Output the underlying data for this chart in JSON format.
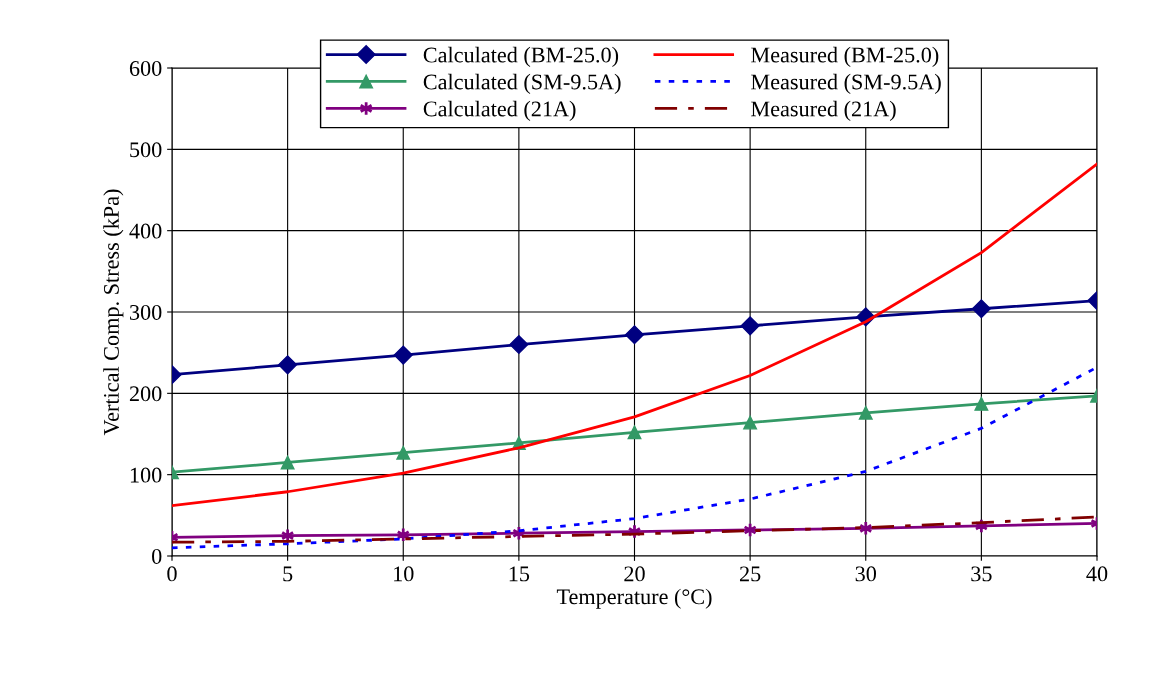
{
  "chart_data": {
    "type": "line",
    "xlabel": "Temperature (°C)",
    "ylabel": "Vertical Comp. Stress (kPa)",
    "x": [
      0,
      5,
      10,
      15,
      20,
      25,
      30,
      35,
      40
    ],
    "xlim": [
      0,
      40
    ],
    "xticks": [
      0,
      5,
      10,
      15,
      20,
      25,
      30,
      35,
      40
    ],
    "ylim": [
      0,
      600
    ],
    "yticks": [
      0,
      100,
      200,
      300,
      400,
      500,
      600
    ],
    "grid": true,
    "legend": "top",
    "series": [
      {
        "name": "Calculated (BM-25.0)",
        "color": "#000080",
        "marker": "diamond",
        "line_style": "solid",
        "values": [
          223,
          235,
          247,
          260,
          272,
          283,
          294,
          304,
          314
        ]
      },
      {
        "name": "Calculated (SM-9.5A)",
        "color": "#339966",
        "marker": "triangle",
        "line_style": "solid",
        "values": [
          103,
          115,
          127,
          139,
          152,
          164,
          176,
          187,
          197
        ]
      },
      {
        "name": "Calculated (21A)",
        "color": "#800080",
        "marker": "cross",
        "line_style": "solid",
        "values": [
          23,
          25,
          26,
          28,
          30,
          32,
          34,
          37,
          40
        ]
      },
      {
        "name": "Measured (BM-25.0)",
        "color": "#ff0000",
        "marker": "none",
        "line_style": "solid",
        "values": [
          62,
          79,
          102,
          133,
          171,
          222,
          288,
          373,
          482
        ]
      },
      {
        "name": "Measured (SM-9.5A)",
        "color": "#0000ff",
        "marker": "none",
        "line_style": "dotted",
        "values": [
          10,
          15,
          21,
          31,
          46,
          70,
          104,
          157,
          232
        ]
      },
      {
        "name": "Measured (21A)",
        "color": "#800000",
        "marker": "none",
        "line_style": "dashdot",
        "values": [
          17,
          18,
          21,
          24,
          27,
          31,
          35,
          41,
          48
        ]
      }
    ]
  }
}
